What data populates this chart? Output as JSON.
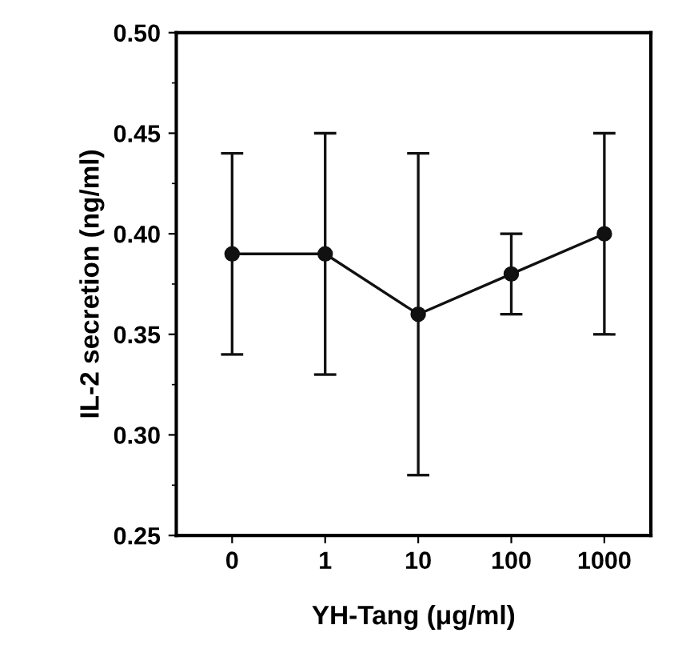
{
  "chart_data": {
    "type": "line",
    "xlabel": "YH-Tang (μg/ml)",
    "ylabel": "IL-2 secretion (ng/ml)",
    "categories": [
      "0",
      "1",
      "10",
      "100",
      "1000"
    ],
    "series": [
      {
        "color": "#111111",
        "values": [
          0.39,
          0.39,
          0.36,
          0.38,
          0.4
        ],
        "errors": [
          0.05,
          0.06,
          0.08,
          0.02,
          0.05
        ]
      }
    ],
    "ylim": [
      0.25,
      0.5
    ],
    "yticks": [
      {
        "value": 0.25,
        "label": "0.25"
      },
      {
        "value": 0.3,
        "label": "0.30"
      },
      {
        "value": 0.35,
        "label": "0.35"
      },
      {
        "value": 0.4,
        "label": "0.40"
      },
      {
        "value": 0.45,
        "label": "0.45"
      },
      {
        "value": 0.5,
        "label": "0.50"
      }
    ],
    "marker": "circle",
    "line_style": "solid",
    "grid": false,
    "legend": false
  }
}
